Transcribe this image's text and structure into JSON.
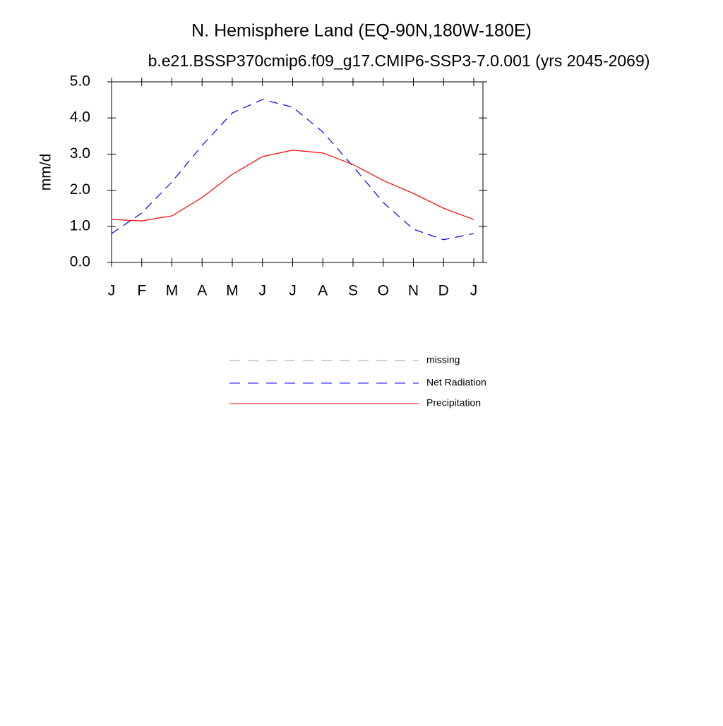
{
  "chart_data": {
    "type": "line",
    "title": "N. Hemisphere Land (EQ-90N,180W-180E)",
    "subtitle": "b.e21.BSSP370cmip6.f09_g17.CMIP6-SSP3-7.0.001 (yrs 2045-2069)",
    "y_label": "mm/d",
    "categories": [
      "J",
      "F",
      "M",
      "A",
      "M",
      "J",
      "J",
      "A",
      "S",
      "O",
      "N",
      "D",
      "J"
    ],
    "series": [
      {
        "name": "missing",
        "color": "#a0a0a0",
        "dash": "dashed",
        "values": [
          null,
          null,
          null,
          null,
          null,
          null,
          null,
          null,
          null,
          null,
          null,
          null,
          null
        ]
      },
      {
        "name": "Net Radiation",
        "color": "#0000ff",
        "dash": "dashed",
        "values": [
          0.8,
          1.37,
          2.23,
          3.24,
          4.14,
          4.51,
          4.3,
          3.61,
          2.66,
          1.66,
          0.92,
          0.63,
          0.8
        ]
      },
      {
        "name": "Precipitation",
        "color": "#ff0000",
        "dash": "solid",
        "values": [
          1.19,
          1.15,
          1.29,
          1.8,
          2.44,
          2.93,
          3.11,
          3.03,
          2.71,
          2.27,
          1.91,
          1.5,
          1.19
        ]
      }
    ],
    "ylim": [
      0,
      5
    ],
    "yticks": [
      {
        "value": 0,
        "label": "0.0"
      },
      {
        "value": 1,
        "label": "1.0"
      },
      {
        "value": 2,
        "label": "2.0"
      },
      {
        "value": 3,
        "label": "3.0"
      },
      {
        "value": 4,
        "label": "4.0"
      },
      {
        "value": 5,
        "label": "5.0"
      }
    ]
  }
}
